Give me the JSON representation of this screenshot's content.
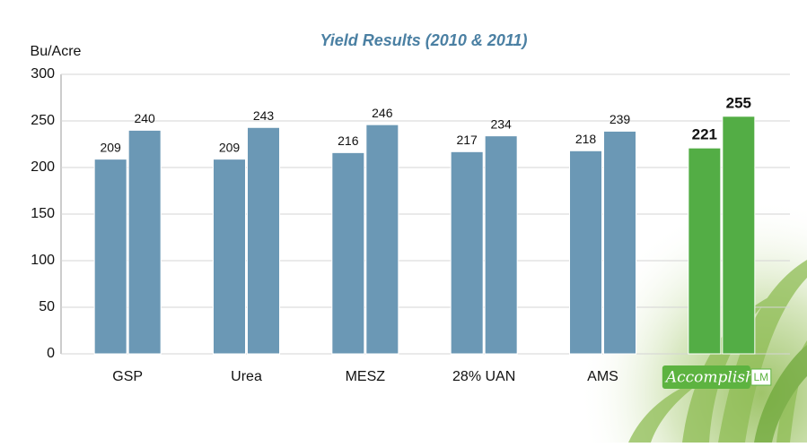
{
  "chart_data": {
    "type": "bar",
    "title": "Yield Results (2010 & 2011)",
    "y_label": "Bu/Acre",
    "categories": [
      "GSP",
      "Urea",
      "MESZ",
      "28% UAN",
      "AMS",
      null
    ],
    "logo": {
      "text": "Accomplish",
      "badge": "LM"
    },
    "series": [
      {
        "colors": [
          "#6b98b5",
          "#6b98b5",
          "#6b98b5",
          "#6b98b5",
          "#6b98b5",
          "#53ad45"
        ],
        "values": [
          209,
          209,
          216,
          217,
          218,
          221
        ]
      },
      {
        "colors": [
          "#6b98b5",
          "#6b98b5",
          "#6b98b5",
          "#6b98b5",
          "#6b98b5",
          "#53ad45"
        ],
        "values": [
          240,
          243,
          246,
          234,
          239,
          255
        ]
      }
    ],
    "bold_labels": [
      false,
      false,
      false,
      false,
      false,
      true
    ],
    "ylim": [
      0,
      300
    ],
    "yticks": [
      0,
      50,
      100,
      150,
      200,
      250,
      300
    ],
    "grid": true
  }
}
